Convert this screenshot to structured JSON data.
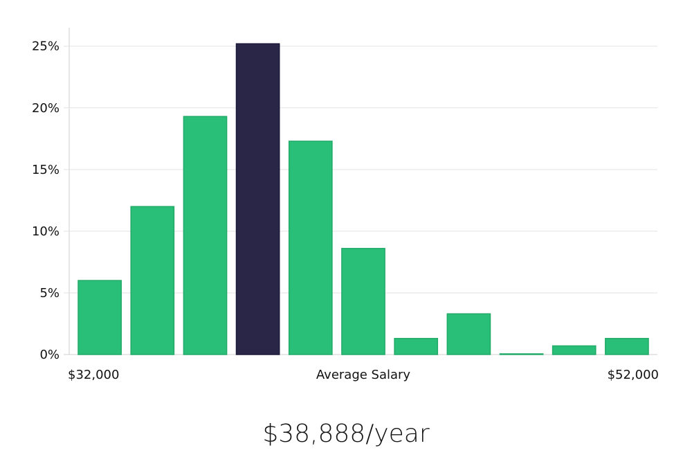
{
  "chart_data": {
    "type": "bar",
    "bin_count": 11,
    "values": [
      6.0,
      12.0,
      19.3,
      25.2,
      17.3,
      8.6,
      1.3,
      3.3,
      0.05,
      0.7,
      1.3
    ],
    "highlight_index": 3,
    "ylim": [
      0,
      26.5
    ],
    "yticks": [
      0,
      5,
      10,
      15,
      20,
      25
    ],
    "ytick_suffix": "%",
    "x_start_label": "$32,000",
    "x_center_label": "Average Salary",
    "x_end_label": "$52,000",
    "grid": true,
    "colors": {
      "bar": "#2abf78",
      "bar_stroke": "#22aa68",
      "highlight": "#2a2647",
      "highlight_stroke": "#1c1838"
    }
  },
  "headline": "$38,888/year"
}
